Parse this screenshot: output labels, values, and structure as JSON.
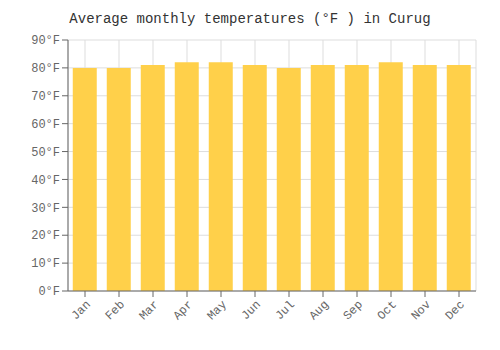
{
  "chart_data": {
    "type": "bar",
    "title": "Average monthly temperatures (°F ) in Curug",
    "categories": [
      "Jan",
      "Feb",
      "Mar",
      "Apr",
      "May",
      "Jun",
      "Jul",
      "Aug",
      "Sep",
      "Oct",
      "Nov",
      "Dec"
    ],
    "values": [
      80,
      80,
      81,
      82,
      82,
      81,
      80,
      81,
      81,
      82,
      81,
      81
    ],
    "color": "#FFD04A",
    "ylim": [
      0,
      90
    ],
    "yticks": [
      {
        "value": 0,
        "label": "0°F"
      },
      {
        "value": 10,
        "label": "10°F"
      },
      {
        "value": 20,
        "label": "20°F"
      },
      {
        "value": 30,
        "label": "30°F"
      },
      {
        "value": 40,
        "label": "40°F"
      },
      {
        "value": 50,
        "label": "50°F"
      },
      {
        "value": 60,
        "label": "60°F"
      },
      {
        "value": 70,
        "label": "70°F"
      },
      {
        "value": 80,
        "label": "80°F"
      },
      {
        "value": 90,
        "label": "90°F"
      }
    ],
    "grid": true
  }
}
